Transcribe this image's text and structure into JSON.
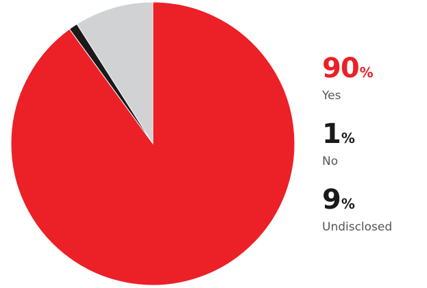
{
  "chart_data": {
    "type": "pie",
    "categories": [
      "Yes",
      "No",
      "Undisclosed"
    ],
    "values": [
      90,
      1,
      9
    ],
    "percent_symbol": "%",
    "colors": [
      "#ec2027",
      "#1a1a1a",
      "#d1d2d4"
    ],
    "label_colors": [
      "#ec2027",
      "#1a1a1a",
      "#1a1a1a"
    ],
    "legend_position": "right"
  }
}
